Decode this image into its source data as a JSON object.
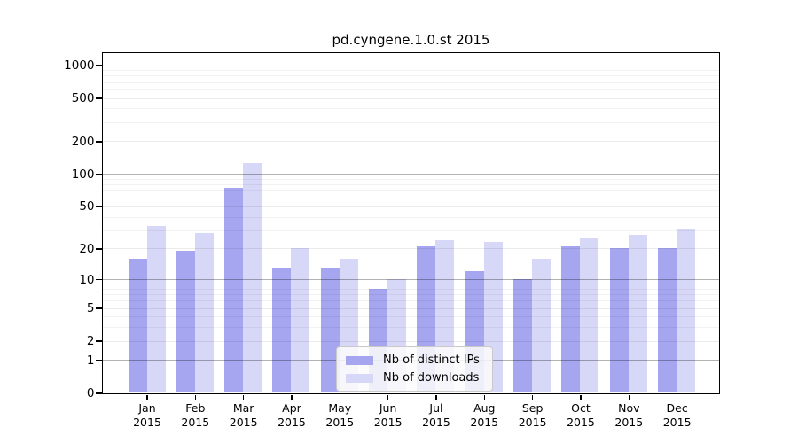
{
  "chart_data": {
    "type": "bar",
    "title": "pd.cyngene.1.0.st 2015",
    "categories": [
      "Jan",
      "Feb",
      "Mar",
      "Apr",
      "May",
      "Jun",
      "Jul",
      "Aug",
      "Sep",
      "Oct",
      "Nov",
      "Dec"
    ],
    "x_tick_second_line": "2015",
    "series": [
      {
        "name": "Nb of distinct IPs",
        "color": "#a5a5f0",
        "values": [
          16,
          19,
          74,
          13,
          13,
          8,
          21,
          12,
          10,
          21,
          20,
          20
        ]
      },
      {
        "name": "Nb of downloads",
        "color": "#d7d7f7",
        "values": [
          33,
          28,
          125,
          20,
          16,
          10,
          24,
          23,
          16,
          25,
          27,
          31
        ]
      }
    ],
    "yscale": "log1p",
    "yticks": [
      0,
      1,
      2,
      5,
      10,
      20,
      50,
      100,
      200,
      500,
      1000
    ],
    "ylim": [
      0,
      1300
    ],
    "grid": "on",
    "legend_position": "bottom-center"
  }
}
